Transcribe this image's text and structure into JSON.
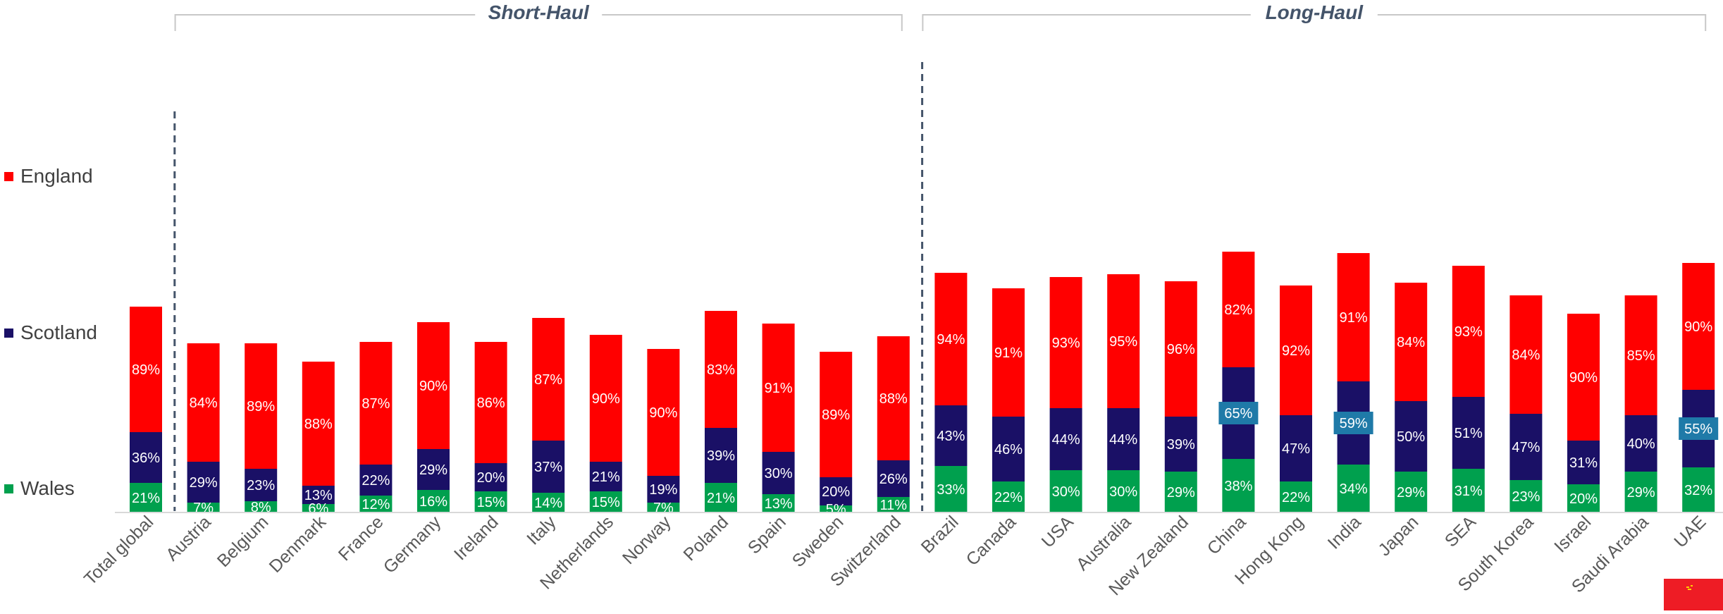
{
  "legend": [
    {
      "name": "England",
      "color": "#ff0000"
    },
    {
      "name": "Scotland",
      "color": "#1a1066"
    },
    {
      "name": "Wales",
      "color": "#00a04e"
    }
  ],
  "chart_data": {
    "type": "bar",
    "stacked": true,
    "title": "",
    "xlabel": "",
    "ylabel": "",
    "groups": [
      {
        "label": "Short-Haul",
        "categories": [
          "Austria",
          "Belgium",
          "Denmark",
          "France",
          "Germany",
          "Ireland",
          "Italy",
          "Netherlands",
          "Norway",
          "Poland",
          "Spain",
          "Sweden",
          "Switzerland"
        ]
      },
      {
        "label": "Long-Haul",
        "categories": [
          "Brazil",
          "Canada",
          "USA",
          "Australia",
          "New Zealand",
          "China",
          "Hong Kong",
          "India",
          "Japan",
          "SEA",
          "South Korea",
          "Israel",
          "Saudi Arabia",
          "UAE"
        ]
      }
    ],
    "categories": [
      "Total global",
      "Austria",
      "Belgium",
      "Denmark",
      "France",
      "Germany",
      "Ireland",
      "Italy",
      "Netherlands",
      "Norway",
      "Poland",
      "Spain",
      "Sweden",
      "Switzerland",
      "Brazil",
      "Canada",
      "USA",
      "Australia",
      "New Zealand",
      "China",
      "Hong Kong",
      "India",
      "Japan",
      "SEA",
      "South Korea",
      "Israel",
      "Saudi Arabia",
      "UAE"
    ],
    "series": [
      {
        "name": "Wales",
        "color": "#00a04e",
        "values": [
          21,
          7,
          8,
          6,
          12,
          16,
          15,
          14,
          15,
          7,
          21,
          13,
          5,
          11,
          33,
          22,
          30,
          30,
          29,
          38,
          22,
          34,
          29,
          31,
          23,
          20,
          29,
          32
        ],
        "labels": [
          "21%",
          "7%",
          "8%",
          "6%",
          "12%",
          "16%",
          "15%",
          "14%",
          "15%",
          "7%",
          "21%",
          "13%",
          "5%",
          "11%",
          "33%",
          "22%",
          "30%",
          "30%",
          "29%",
          "38%",
          "22%",
          "34%",
          "29%",
          "31%",
          "23%",
          "20%",
          "29%",
          "32%"
        ]
      },
      {
        "name": "Scotland",
        "color": "#1a1066",
        "values": [
          36,
          29,
          23,
          13,
          22,
          29,
          20,
          37,
          21,
          19,
          39,
          30,
          20,
          26,
          43,
          46,
          44,
          44,
          39,
          65,
          47,
          59,
          50,
          51,
          47,
          31,
          40,
          55
        ],
        "labels": [
          "36%",
          "29%",
          "23%",
          "13%",
          "22%",
          "29%",
          "20%",
          "37%",
          "21%",
          "19%",
          "39%",
          "30%",
          "20%",
          "26%",
          "43%",
          "46%",
          "44%",
          "44%",
          "39%",
          "65%",
          "47%",
          "59%",
          "50%",
          "51%",
          "47%",
          "31%",
          "40%",
          "55%"
        ],
        "highlighted": [
          "China",
          "India",
          "UAE"
        ]
      },
      {
        "name": "England",
        "color": "#ff0000",
        "values": [
          89,
          84,
          89,
          88,
          87,
          90,
          86,
          87,
          90,
          90,
          83,
          91,
          89,
          88,
          94,
          91,
          93,
          95,
          96,
          82,
          92,
          91,
          84,
          93,
          84,
          90,
          85,
          90
        ],
        "labels": [
          "89%",
          "84%",
          "89%",
          "88%",
          "87%",
          "90%",
          "86%",
          "87%",
          "90%",
          "90%",
          "83%",
          "91%",
          "89%",
          "88%",
          "94%",
          "91%",
          "93%",
          "95%",
          "96%",
          "82%",
          "92%",
          "91%",
          "84%",
          "93%",
          "84%",
          "90%",
          "85%",
          "90%"
        ]
      }
    ],
    "highlight_color": "#1f7aa8",
    "grid": false,
    "legend_position": "left"
  }
}
